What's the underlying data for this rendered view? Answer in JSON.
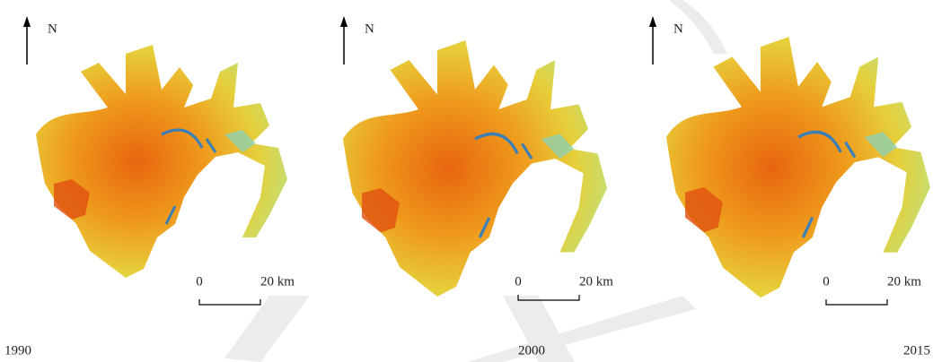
{
  "panels": [
    {
      "north": "N",
      "scale_start": "0",
      "scale_end": "20 km",
      "year": "1990"
    },
    {
      "north": "N",
      "scale_start": "0",
      "scale_end": "20 km",
      "year": "2000"
    },
    {
      "north": "N",
      "scale_start": "0",
      "scale_end": "20 km",
      "year": "2015"
    }
  ]
}
